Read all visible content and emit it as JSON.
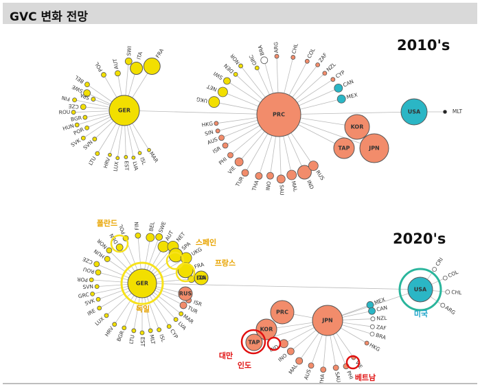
{
  "header": {
    "title": "GVC 변화 전망"
  },
  "colors": {
    "germany": "#f2df00",
    "asia": "#f28c6b",
    "usa": "#2bb6c5",
    "small": "#222222",
    "highlight_yellow": "#f7e21b",
    "highlight_red": "#e01010",
    "highlight_teal": "#2ab59c"
  },
  "periods": {
    "p2010": "2010's",
    "p2020": "2020's"
  },
  "hubs": {
    "ger2010": "GER",
    "prc2010": "PRC",
    "usa2010": "USA",
    "kor2010": "KOR",
    "tap2010": "TAP",
    "jpn2010": "JPN",
    "ger2020": "GER",
    "usa2020": "USA",
    "prc2020": "PRC",
    "jpn2020": "JPN",
    "kor2020": "KOR",
    "tap2020": "TAP",
    "rus2020": "RUS",
    "ita2020": "ITA"
  },
  "labels2010": {
    "ger": [
      "POL",
      "AUT",
      "SWI",
      "ITA",
      "FRA",
      "BEL",
      "SWE",
      "SPA",
      "FIN",
      "CZE",
      "ROU",
      "BGR",
      "HUN",
      "POR",
      "SVK",
      "SVN",
      "LTU",
      "HRV",
      "LUX",
      "EST",
      "LVA",
      "ISL",
      "MAR"
    ],
    "prc": [
      "BRA",
      "GRC",
      "ARG",
      "CHL",
      "COL",
      "ZAF",
      "NZL",
      "CYP",
      "CAN",
      "MEX",
      "NOR",
      "DEN",
      "SWI",
      "NET",
      "UKG",
      "HKG",
      "SIN",
      "AUS",
      "ISR",
      "PHI",
      "VIE",
      "TUR",
      "THA",
      "INO",
      "SAU",
      "MAL",
      "IND",
      "RUS"
    ],
    "usa": [
      "MLT"
    ]
  },
  "labels2020": {
    "ger": [
      "FIN",
      "POL",
      "DEN",
      "NOR",
      "HUN",
      "CZE",
      "ROU",
      "POR",
      "SVN",
      "GRC",
      "SVK",
      "IRE",
      "LUX",
      "HRV",
      "BGR",
      "LTU",
      "EST",
      "MLT",
      "ISL",
      "CYP",
      "LVA",
      "MAR",
      "TUR",
      "ISR",
      "BEL",
      "SWE",
      "AUT",
      "NET",
      "SPA",
      "UKG",
      "FRA",
      "SWI"
    ],
    "usa": [
      "CRI",
      "COL",
      "CHL",
      "ARG"
    ],
    "jpn": [
      "MEX",
      "CAN",
      "NZL",
      "ZAF",
      "BRA",
      "HKG",
      "VIE",
      "PHI",
      "SAU",
      "THA",
      "AUS",
      "MAL",
      "INO",
      "IND"
    ]
  },
  "annotations": {
    "poland": "폴란드",
    "spain": "스페인",
    "france": "프랑스",
    "germany": "독일",
    "usa": "미국",
    "taiwan": "대만",
    "india": "인도",
    "vietnam": "베트남"
  }
}
